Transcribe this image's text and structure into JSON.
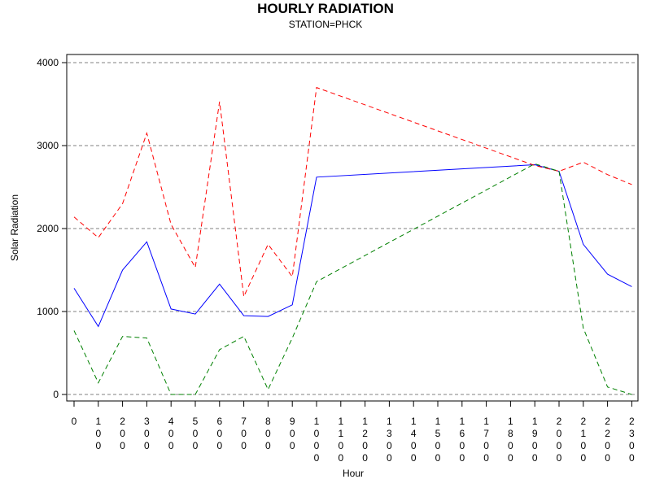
{
  "chart_data": {
    "type": "line",
    "title": "HOURLY RADIATION",
    "subtitle": "STATION=PHCK",
    "xlabel": "Hour",
    "ylabel": "Solar Radiation",
    "ylim": [
      0,
      4000
    ],
    "yticks": [
      "0",
      "1000",
      "2000",
      "3000",
      "4000"
    ],
    "grid": "horizontal dashed",
    "legend": "none",
    "categories": [
      "0",
      "100",
      "200",
      "300",
      "400",
      "500",
      "600",
      "700",
      "800",
      "900",
      "1000",
      "1100",
      "1200",
      "1300",
      "1400",
      "1500",
      "1600",
      "1700",
      "1800",
      "1900",
      "2000",
      "2100",
      "2200",
      "2300"
    ],
    "series": [
      {
        "color": "#0000ff",
        "dash": "solid",
        "points": [
          [
            0,
            1280
          ],
          [
            1,
            820
          ],
          [
            2,
            1500
          ],
          [
            3,
            1840
          ],
          [
            4,
            1030
          ],
          [
            5,
            970
          ],
          [
            6,
            1330
          ],
          [
            7,
            950
          ],
          [
            8,
            940
          ],
          [
            9,
            1080
          ],
          [
            10,
            2620
          ],
          [
            19,
            2770
          ],
          [
            20,
            2690
          ],
          [
            21,
            1810
          ],
          [
            22,
            1450
          ],
          [
            23,
            1300
          ]
        ]
      },
      {
        "color": "#ff0000",
        "dash": "dashed",
        "points": [
          [
            0,
            2140
          ],
          [
            1,
            1890
          ],
          [
            2,
            2300
          ],
          [
            3,
            3150
          ],
          [
            4,
            2050
          ],
          [
            5,
            1530
          ],
          [
            6,
            3530
          ],
          [
            7,
            1180
          ],
          [
            8,
            1810
          ],
          [
            9,
            1420
          ],
          [
            10,
            3700
          ],
          [
            19,
            2760
          ],
          [
            20,
            2690
          ],
          [
            21,
            2800
          ],
          [
            22,
            2650
          ],
          [
            23,
            2530
          ]
        ]
      },
      {
        "color": "#008000",
        "dash": "dashed",
        "points": [
          [
            0,
            770
          ],
          [
            1,
            140
          ],
          [
            2,
            700
          ],
          [
            3,
            680
          ],
          [
            4,
            0
          ],
          [
            5,
            0
          ],
          [
            6,
            540
          ],
          [
            7,
            700
          ],
          [
            8,
            60
          ],
          [
            9,
            680
          ],
          [
            10,
            1360
          ],
          [
            19,
            2780
          ],
          [
            20,
            2690
          ],
          [
            21,
            800
          ],
          [
            22,
            90
          ],
          [
            23,
            0
          ]
        ]
      }
    ]
  }
}
